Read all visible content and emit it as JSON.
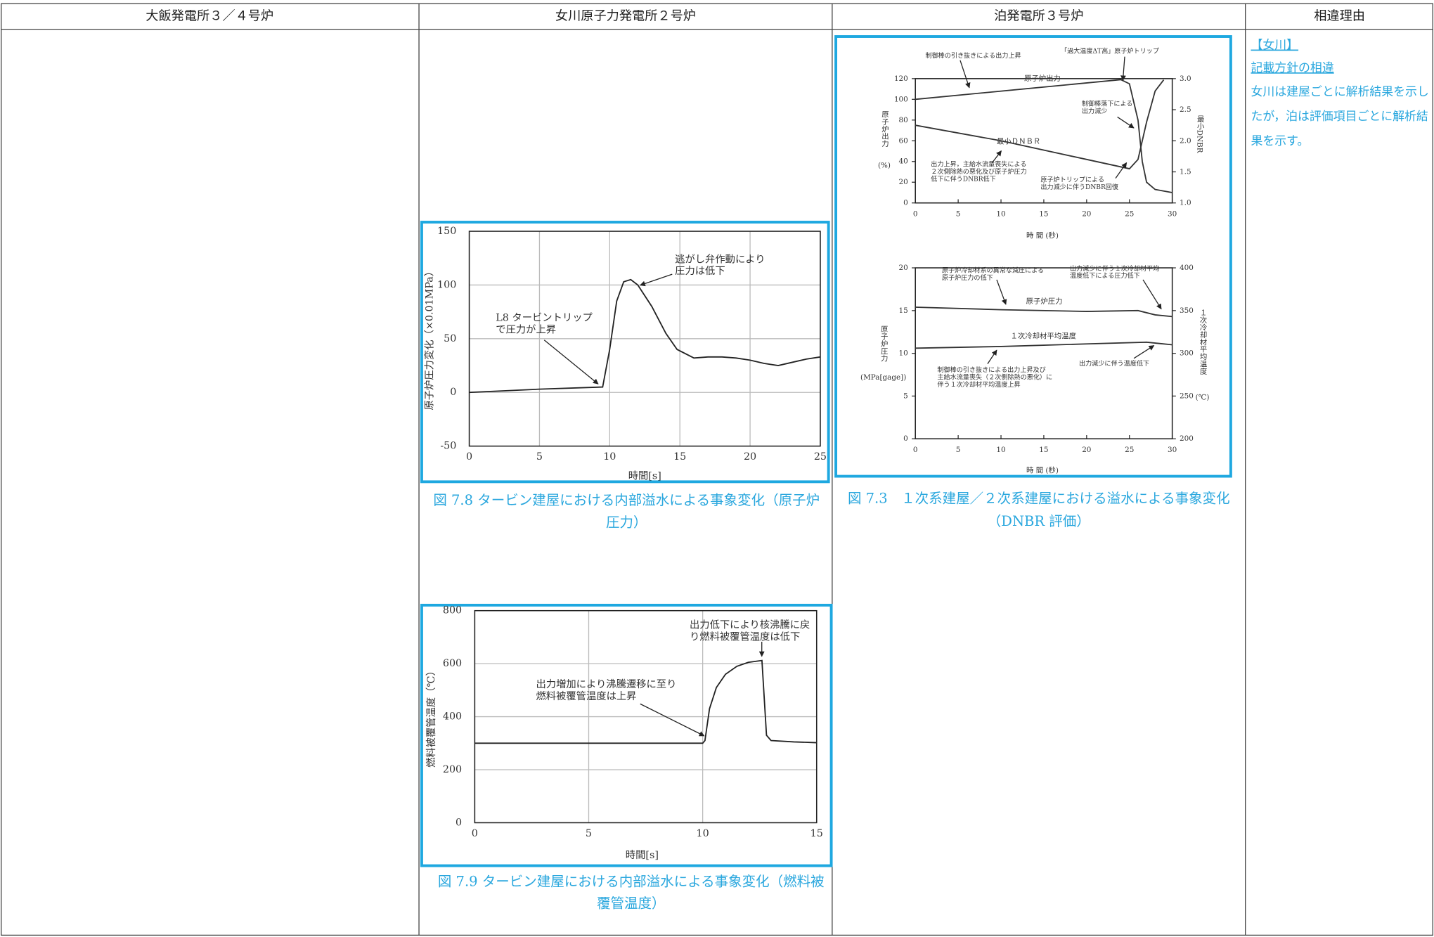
{
  "header": {
    "columns": [
      "大飯発電所３／４号炉",
      "女川原子力発電所２号炉",
      "泊発電所３号炉",
      "相違理由"
    ]
  },
  "reason": {
    "tag": "【女川】",
    "heading": "記載方針の相違",
    "lines": [
      "女川は建屋ごとに解析結果を示し",
      "たが，泊は評価項目ごとに解析結",
      "果を示す。"
    ]
  },
  "figures": [
    {
      "caption_lines": [
        "図 7.8 タービン建屋における内部溢水による事象変化（原子炉",
        "圧力）"
      ],
      "charts": [
        {
          "type": "line",
          "xlabel": "時間[s]",
          "ylabel": "原子炉圧力変化（×0.01MPa）",
          "xlim": [
            0,
            25
          ],
          "xticks": [
            0,
            5,
            10,
            15,
            20,
            25
          ],
          "ylim": [
            -50,
            150
          ],
          "yticks": [
            -50,
            0,
            50,
            100,
            150
          ],
          "grid": true,
          "series": [
            {
              "color": "#222222",
              "x": [
                0,
                5,
                9.5,
                10,
                10.5,
                11,
                11.5,
                12,
                13,
                14,
                14.8,
                16,
                17,
                18,
                19,
                20,
                21,
                22,
                23,
                24,
                25
              ],
              "values": [
                0,
                3,
                5,
                40,
                85,
                103,
                105,
                100,
                80,
                55,
                40,
                32,
                33,
                33,
                32,
                30,
                27,
                25,
                28,
                31,
                33
              ]
            }
          ],
          "annotations": [
            {
              "lines": [
                "逃がし弁作動により",
                "圧力は低下"
              ]
            },
            {
              "lines": [
                "L8 タービントリップ",
                "で圧力が上昇"
              ]
            }
          ]
        }
      ]
    },
    {
      "caption_lines": [
        "図 7.9 タービン建屋における内部溢水による事象変化（燃料被",
        "覆管温度）"
      ],
      "charts": [
        {
          "type": "line",
          "xlabel": "時間[s]",
          "ylabel": "燃料被覆管温度（℃）",
          "xlim": [
            0,
            15
          ],
          "xticks": [
            0,
            5,
            10,
            15
          ],
          "ylim": [
            0,
            800
          ],
          "yticks": [
            0,
            200,
            400,
            600,
            800
          ],
          "grid": true,
          "series": [
            {
              "color": "#222222",
              "x": [
                0,
                10,
                10.1,
                10.3,
                10.6,
                11,
                11.5,
                12,
                12.6,
                12.8,
                13,
                14,
                15
              ],
              "values": [
                300,
                300,
                310,
                430,
                510,
                560,
                590,
                605,
                612,
                330,
                310,
                305,
                302
              ]
            }
          ],
          "annotations": [
            {
              "lines": [
                "出力低下により核沸騰に戻",
                "り燃料被覆管温度は低下"
              ]
            },
            {
              "lines": [
                "出力増加により沸騰遷移に至り",
                "燃料被覆管温度は上昇"
              ]
            }
          ]
        }
      ]
    },
    {
      "caption_lines": [
        "図 7.3　１次系建屋／２次系建屋における溢水による事象変化",
        "（DNBR 評価）"
      ],
      "charts": [
        {
          "type": "line",
          "xlabel": "時 間 (秒)",
          "ylabel": "原子炉出力",
          "yunit": "(%)",
          "y2label": "最小DNBR",
          "xlim": [
            0,
            30
          ],
          "xticks": [
            0,
            5,
            10,
            15,
            20,
            25,
            30
          ],
          "ylim": [
            0,
            120
          ],
          "yticks": [
            0,
            20,
            40,
            60,
            80,
            100,
            120
          ],
          "y2lim": [
            1,
            3
          ],
          "y2ticks": [
            {
              "value": 1,
              "label": "1.0"
            },
            1.5,
            {
              "value": 2,
              "label": "2.0"
            },
            2.5,
            {
              "value": 3,
              "label": "3.0"
            }
          ],
          "grid": false,
          "series": [
            {
              "name": "原子炉出力",
              "color": "#333333",
              "x": [
                0,
                24,
                25,
                26,
                26.5,
                27,
                28,
                30
              ],
              "values": [
                100,
                119,
                115,
                80,
                40,
                20,
                13,
                10
              ]
            },
            {
              "name": "最小ＤＮＢＲ",
              "color": "#333333",
              "axis": "y2",
              "x": [
                0,
                10,
                20,
                25,
                26,
                27,
                28,
                29
              ],
              "values": [
                2.25,
                2,
                1.7,
                1.55,
                1.7,
                2.3,
                2.8,
                2.98
              ]
            }
          ],
          "annotations": [
            {
              "lines": [
                "制御棒の引き抜きによる出力上昇"
              ]
            },
            {
              "lines": [
                "「過大温度ΔT高」原子炉トリップ"
              ]
            },
            {
              "lines": [
                "制御棒落下による",
                "出力減少"
              ]
            },
            {
              "lines": [
                "出力上昇，主給水流量喪失による",
                "２次側除熱の悪化及び原子炉圧力",
                "低下に伴うDNBR低下"
              ]
            },
            {
              "lines": [
                "原子炉トリップによる",
                "出力減少に伴うDNBR回復"
              ]
            }
          ]
        },
        {
          "type": "line",
          "xlabel": "時 間 (秒)",
          "ylabel": "原子炉圧力",
          "yunit": "(MPa[gage])",
          "y2label": "１次冷却材平均温度",
          "y2unit": "(℃)",
          "xlim": [
            0,
            30
          ],
          "xticks": [
            0,
            5,
            10,
            15,
            20,
            25,
            30
          ],
          "ylim": [
            0,
            20
          ],
          "yticks": [
            0,
            5,
            10,
            15,
            20
          ],
          "y2lim": [
            200,
            400
          ],
          "y2ticks": [
            200,
            250,
            300,
            350,
            400
          ],
          "grid": false,
          "series": [
            {
              "name": "原子炉圧力",
              "color": "#333333",
              "x": [
                0,
                10,
                20,
                26,
                28,
                30
              ],
              "values": [
                15.4,
                15.1,
                14.9,
                15,
                14.5,
                14.3
              ]
            },
            {
              "name": "１次冷却材平均温度",
              "color": "#333333",
              "axis": "y2",
              "x": [
                0,
                10,
                20,
                27,
                30
              ],
              "values": [
                306,
                308,
                311,
                313,
                310
              ]
            }
          ],
          "annotations": [
            {
              "lines": [
                "原子炉冷却材系の異常な減圧による",
                "原子炉圧力の低下"
              ]
            },
            {
              "lines": [
                "出力減少に伴う１次冷却材平均",
                "温度低下による圧力低下"
              ]
            },
            {
              "lines": [
                "制御棒の引き抜きによる出力上昇及び",
                "主給水流量喪失（２次側除熱の悪化）に",
                "伴う１次冷却材平均温度上昇"
              ]
            },
            {
              "lines": [
                "出力減少に伴う温度低下"
              ]
            }
          ]
        }
      ]
    }
  ]
}
